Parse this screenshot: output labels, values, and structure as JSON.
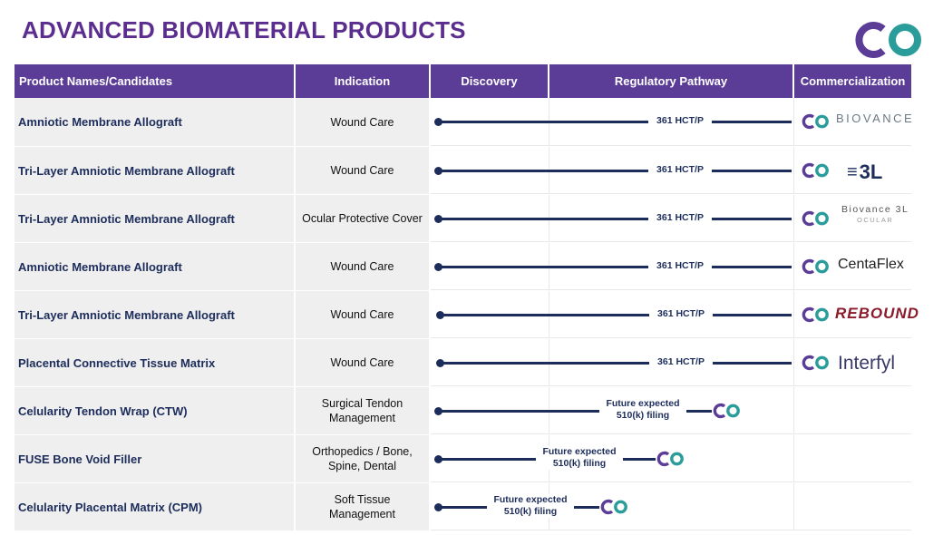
{
  "title": "ADVANCED BIOMATERIAL PRODUCTS",
  "headers": {
    "product": "Product Names/Candidates",
    "indication": "Indication",
    "discovery": "Discovery",
    "regulatory": "Regulatory Pathway",
    "commercialization": "Commercialization"
  },
  "rows": [
    {
      "product": "Amniotic Membrane Allograft",
      "indication": "Wound Care",
      "pathway": "361 HCT/P",
      "brand": "BIOVANCE"
    },
    {
      "product": "Tri-Layer Amniotic Membrane Allograft",
      "indication": "Wound Care",
      "pathway": "361 HCT/P",
      "brand": "3L"
    },
    {
      "product": "Tri-Layer Amniotic Membrane Allograft",
      "indication": "Ocular Protective Cover",
      "pathway": "361 HCT/P",
      "brand": "Biovance 3L",
      "brand_sub": "OCULAR"
    },
    {
      "product": "Amniotic Membrane Allograft",
      "indication": "Wound Care",
      "pathway": "361 HCT/P",
      "brand": "CentaFlex"
    },
    {
      "product": "Tri-Layer Amniotic Membrane Allograft",
      "indication": "Wound Care",
      "pathway": "361 HCT/P",
      "brand": "REBOUND"
    },
    {
      "product": "Placental Connective  Tissue Matrix",
      "indication": "Wound Care",
      "pathway": "361 HCT/P",
      "brand": "Interfyl"
    },
    {
      "product": "Celularity Tendon Wrap (CTW)",
      "indication": "Surgical Tendon\nManagement",
      "pathway": "Future expected\n510(k) filing"
    },
    {
      "product": "FUSE Bone Void Filler",
      "indication": "Orthopedics / Bone,\nSpine, Dental",
      "pathway": "Future expected\n510(k) filing"
    },
    {
      "product": "Celularity Placental Matrix (CPM)",
      "indication": "Soft Tissue\nManagement",
      "pathway": "Future expected\n510(k) filing"
    }
  ],
  "colors": {
    "header": "#5b3d97",
    "title": "#5b2d8e",
    "track": "#1d2d5b",
    "logo_purple": "#5b3d97",
    "logo_teal": "#2a9d9a"
  }
}
